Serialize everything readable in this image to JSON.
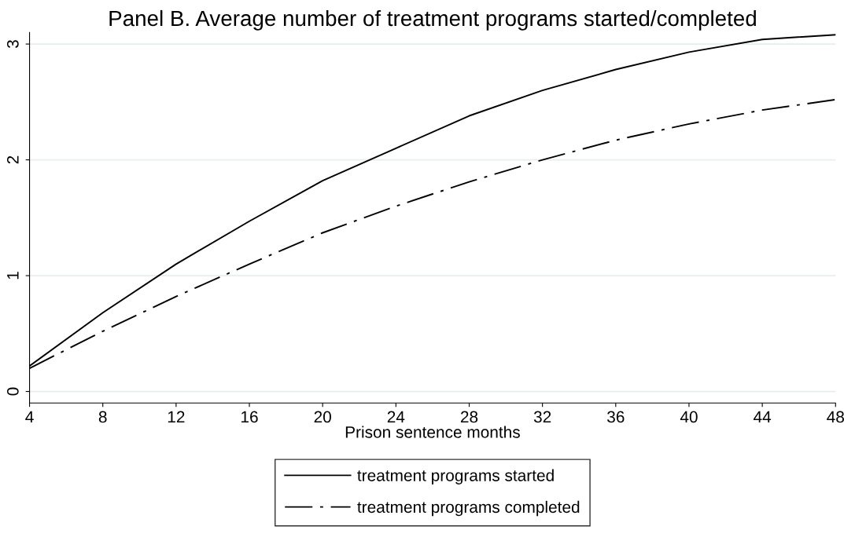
{
  "chart_data": {
    "type": "line",
    "title": "Panel B. Average number of treatment programs started/completed",
    "xlabel": "Prison sentence months",
    "x": [
      4,
      8,
      12,
      16,
      20,
      24,
      28,
      32,
      36,
      40,
      44,
      48
    ],
    "series": [
      {
        "name": "treatment programs started",
        "color": "#000000",
        "line_style": "solid",
        "values": [
          0.22,
          0.68,
          1.1,
          1.47,
          1.82,
          2.1,
          2.38,
          2.6,
          2.78,
          2.93,
          3.04,
          3.08
        ]
      },
      {
        "name": "treatment programs completed",
        "color": "#000000",
        "line_style": "dashdot",
        "values": [
          0.2,
          0.52,
          0.82,
          1.1,
          1.37,
          1.6,
          1.81,
          2.0,
          2.17,
          2.31,
          2.43,
          2.52
        ]
      }
    ],
    "xlim": [
      4,
      48
    ],
    "xticks": [
      4,
      8,
      12,
      16,
      20,
      24,
      28,
      32,
      36,
      40,
      44,
      48
    ],
    "ylim": [
      -0.1,
      3.1
    ],
    "yticks": [
      0,
      1,
      2,
      3
    ],
    "grid": "y",
    "legend": "bottom",
    "marker": "none"
  }
}
